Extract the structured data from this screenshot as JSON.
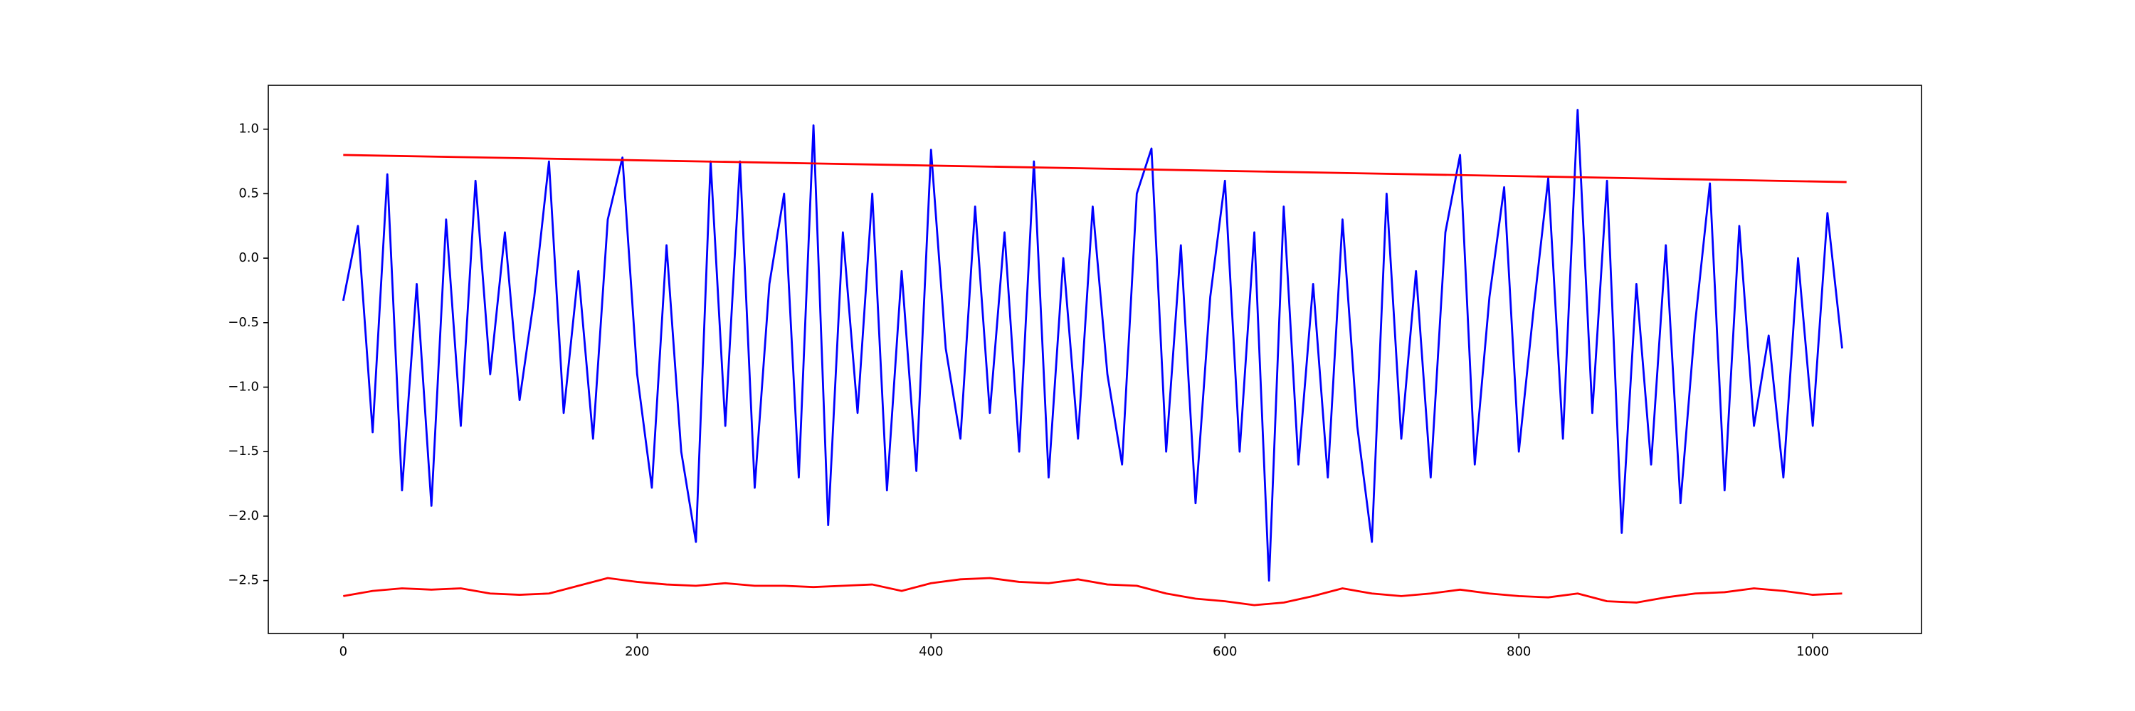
{
  "chart_data": {
    "type": "line",
    "xlim": [
      -51,
      1074
    ],
    "ylim": [
      -2.91,
      1.34
    ],
    "xticks": [
      0,
      200,
      400,
      600,
      800,
      1000
    ],
    "yticks": [
      {
        "value": -2.5,
        "label": "−2.5"
      },
      {
        "value": -2.0,
        "label": "−2.0"
      },
      {
        "value": -1.5,
        "label": "−1.5"
      },
      {
        "value": -1.0,
        "label": "−1.0"
      },
      {
        "value": -0.5,
        "label": "−0.5"
      },
      {
        "value": 0.0,
        "label": "0.0"
      },
      0.5,
      {
        "value": 1.0,
        "label": "1.0"
      }
    ],
    "series": [
      {
        "color": "#0000ff",
        "x": [
          0,
          10,
          20,
          30,
          40,
          50,
          60,
          70,
          80,
          90,
          100,
          110,
          120,
          130,
          140,
          150,
          160,
          170,
          180,
          190,
          200,
          210,
          220,
          230,
          240,
          250,
          260,
          270,
          280,
          290,
          300,
          310,
          320,
          330,
          340,
          350,
          360,
          370,
          380,
          390,
          400,
          410,
          420,
          430,
          440,
          450,
          460,
          470,
          480,
          490,
          500,
          510,
          520,
          530,
          540,
          550,
          560,
          570,
          580,
          590,
          600,
          610,
          620,
          630,
          640,
          650,
          660,
          670,
          680,
          690,
          700,
          710,
          720,
          730,
          740,
          750,
          760,
          770,
          780,
          790,
          800,
          810,
          820,
          830,
          840,
          850,
          860,
          870,
          880,
          890,
          900,
          910,
          920,
          930,
          940,
          950,
          960,
          970,
          980,
          990,
          1000,
          1010,
          1020
        ],
        "values": [
          -0.33,
          0.25,
          -1.35,
          0.65,
          -1.8,
          -0.2,
          -1.92,
          0.3,
          -1.3,
          0.6,
          -0.9,
          0.2,
          -1.1,
          -0.3,
          0.75,
          -1.2,
          -0.1,
          -1.4,
          0.3,
          0.78,
          -0.9,
          -1.78,
          0.1,
          -1.5,
          -2.2,
          0.75,
          -1.3,
          0.75,
          -1.78,
          -0.2,
          0.5,
          -1.7,
          1.03,
          -2.07,
          0.2,
          -1.2,
          0.5,
          -1.8,
          -0.1,
          -1.65,
          0.84,
          -0.7,
          -1.4,
          0.4,
          -1.2,
          0.2,
          -1.5,
          0.75,
          -1.7,
          0.0,
          -1.4,
          0.4,
          -0.9,
          -1.6,
          0.5,
          0.85,
          -1.5,
          0.1,
          -1.9,
          -0.3,
          0.6,
          -1.5,
          0.2,
          -2.5,
          0.4,
          -1.6,
          -0.2,
          -1.7,
          0.3,
          -1.3,
          -2.2,
          0.5,
          -1.4,
          -0.1,
          -1.7,
          0.2,
          0.8,
          -1.6,
          -0.3,
          0.55,
          -1.5,
          -0.4,
          0.62,
          -1.4,
          1.15,
          -1.2,
          0.6,
          -2.13,
          -0.2,
          -1.6,
          0.1,
          -1.9,
          -0.5,
          0.58,
          -1.8,
          0.25,
          -1.3,
          -0.6,
          -1.7,
          0.0,
          -1.3,
          0.35,
          -0.7
        ]
      },
      {
        "color": "#ff0000",
        "x": [
          0,
          1023
        ],
        "values": [
          0.8,
          0.59
        ]
      },
      {
        "color": "#ff0000",
        "x": [
          0,
          20,
          40,
          60,
          80,
          100,
          120,
          140,
          160,
          180,
          200,
          220,
          240,
          260,
          280,
          300,
          320,
          340,
          360,
          380,
          400,
          420,
          440,
          460,
          480,
          500,
          520,
          540,
          560,
          580,
          600,
          620,
          640,
          660,
          680,
          700,
          720,
          740,
          760,
          780,
          800,
          820,
          840,
          860,
          880,
          900,
          920,
          940,
          960,
          980,
          1000,
          1020
        ],
        "values": [
          -2.62,
          -2.58,
          -2.56,
          -2.57,
          -2.56,
          -2.6,
          -2.61,
          -2.6,
          -2.54,
          -2.48,
          -2.51,
          -2.53,
          -2.54,
          -2.52,
          -2.54,
          -2.54,
          -2.55,
          -2.54,
          -2.53,
          -2.58,
          -2.52,
          -2.49,
          -2.48,
          -2.51,
          -2.52,
          -2.49,
          -2.53,
          -2.54,
          -2.6,
          -2.64,
          -2.66,
          -2.69,
          -2.67,
          -2.62,
          -2.56,
          -2.6,
          -2.62,
          -2.6,
          -2.57,
          -2.6,
          -2.62,
          -2.63,
          -2.6,
          -2.66,
          -2.67,
          -2.63,
          -2.6,
          -2.59,
          -2.56,
          -2.58,
          -2.61,
          -2.6
        ]
      }
    ]
  }
}
